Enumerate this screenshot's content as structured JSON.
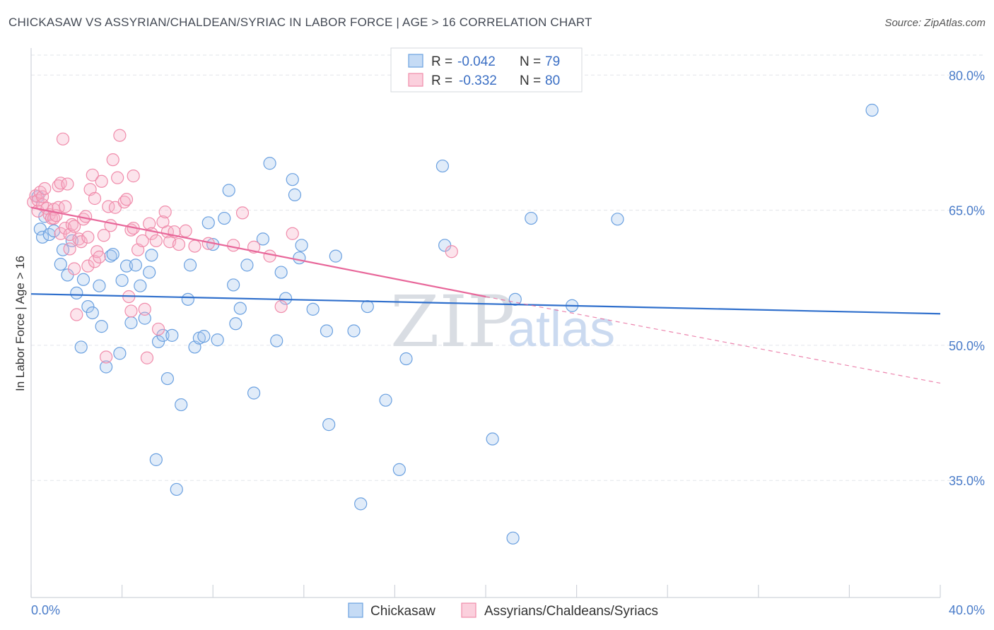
{
  "title": "CHICKASAW VS ASSYRIAN/CHALDEAN/SYRIAC IN LABOR FORCE | AGE > 16 CORRELATION CHART",
  "source": "Source: ZipAtlas.com",
  "watermark": {
    "zip": "ZIP",
    "atlas": "atlas"
  },
  "legend": {
    "rows": [
      {
        "r_label": "R = ",
        "r_value": "-0.042",
        "n_label": "N = ",
        "n_value": "79",
        "color": "#6aa0e0"
      },
      {
        "r_label": "R = ",
        "r_value": "-0.332",
        "n_label": "N = ",
        "n_value": "80",
        "color": "#f08cab"
      }
    ]
  },
  "bottom_legend": [
    "Chickasaw",
    "Assyrians/Chaldeans/Syriacs"
  ],
  "chart_data": {
    "type": "scatter",
    "xlabel": "",
    "ylabel": "In Labor Force | Age > 16",
    "xlim": [
      0,
      40
    ],
    "ylim": [
      22,
      83
    ],
    "x_tick_labels": [
      "0.0%",
      "40.0%"
    ],
    "y_ticks": [
      35,
      50,
      65,
      80
    ],
    "y_tick_labels": [
      "35.0%",
      "50.0%",
      "65.0%",
      "80.0%"
    ],
    "grid": true,
    "legend_position": "top-center",
    "series": [
      {
        "name": "Chickasaw",
        "color": "#6aa0e0",
        "trend": {
          "x": [
            0,
            40
          ],
          "y": [
            55.7,
            53.5
          ],
          "style": "solid"
        },
        "points": [
          [
            0.3,
            66.5
          ],
          [
            0.4,
            62.9
          ],
          [
            0.5,
            62.0
          ],
          [
            0.6,
            64.3
          ],
          [
            0.8,
            62.3
          ],
          [
            1.0,
            62.7
          ],
          [
            1.3,
            59.0
          ],
          [
            1.4,
            60.6
          ],
          [
            1.6,
            57.8
          ],
          [
            1.8,
            61.6
          ],
          [
            2.0,
            55.8
          ],
          [
            2.2,
            49.8
          ],
          [
            2.3,
            57.3
          ],
          [
            2.5,
            54.3
          ],
          [
            2.7,
            53.6
          ],
          [
            3.0,
            56.6
          ],
          [
            3.1,
            52.1
          ],
          [
            3.3,
            47.6
          ],
          [
            3.5,
            59.9
          ],
          [
            3.6,
            60.1
          ],
          [
            3.9,
            49.1
          ],
          [
            4.0,
            57.2
          ],
          [
            4.2,
            58.8
          ],
          [
            4.4,
            52.5
          ],
          [
            4.6,
            58.9
          ],
          [
            4.8,
            56.6
          ],
          [
            5.0,
            53.0
          ],
          [
            5.2,
            58.1
          ],
          [
            5.3,
            60.0
          ],
          [
            5.5,
            37.3
          ],
          [
            5.6,
            50.4
          ],
          [
            5.8,
            51.1
          ],
          [
            6.0,
            46.3
          ],
          [
            6.2,
            51.1
          ],
          [
            6.4,
            34.0
          ],
          [
            6.6,
            43.4
          ],
          [
            6.9,
            55.1
          ],
          [
            7.0,
            58.9
          ],
          [
            7.2,
            49.8
          ],
          [
            7.4,
            50.8
          ],
          [
            7.6,
            51.0
          ],
          [
            7.8,
            63.6
          ],
          [
            8.0,
            61.2
          ],
          [
            8.2,
            50.6
          ],
          [
            8.5,
            64.1
          ],
          [
            8.7,
            67.2
          ],
          [
            8.9,
            56.7
          ],
          [
            9.0,
            52.4
          ],
          [
            9.2,
            54.1
          ],
          [
            9.5,
            58.9
          ],
          [
            9.8,
            44.7
          ],
          [
            10.2,
            61.8
          ],
          [
            10.5,
            70.2
          ],
          [
            10.8,
            50.5
          ],
          [
            11.0,
            58.1
          ],
          [
            11.2,
            55.2
          ],
          [
            11.5,
            68.4
          ],
          [
            11.6,
            66.7
          ],
          [
            11.8,
            59.7
          ],
          [
            11.9,
            61.1
          ],
          [
            12.4,
            54.0
          ],
          [
            13.0,
            51.6
          ],
          [
            13.1,
            41.2
          ],
          [
            13.4,
            59.9
          ],
          [
            14.2,
            51.6
          ],
          [
            14.5,
            32.4
          ],
          [
            14.8,
            54.3
          ],
          [
            15.6,
            43.9
          ],
          [
            16.2,
            36.2
          ],
          [
            16.5,
            48.5
          ],
          [
            18.1,
            69.9
          ],
          [
            18.2,
            61.1
          ],
          [
            20.3,
            39.6
          ],
          [
            21.2,
            28.6
          ],
          [
            21.3,
            55.1
          ],
          [
            22.0,
            64.1
          ],
          [
            23.8,
            54.4
          ],
          [
            25.8,
            64.0
          ],
          [
            37.0,
            76.1
          ]
        ]
      },
      {
        "name": "Assyrians/Chaldeans/Syriacs",
        "color": "#f08cab",
        "trend": {
          "x": [
            0,
            20
          ],
          "y": [
            65.3,
            55.4
          ],
          "style": "solid",
          "extension": {
            "x": [
              20,
              40
            ],
            "y": [
              55.4,
              45.8
            ],
            "style": "dashed"
          }
        },
        "points": [
          [
            0.1,
            65.9
          ],
          [
            0.2,
            66.6
          ],
          [
            0.3,
            64.9
          ],
          [
            0.3,
            66.1
          ],
          [
            0.4,
            67.0
          ],
          [
            0.5,
            65.6
          ],
          [
            0.5,
            66.5
          ],
          [
            0.6,
            67.4
          ],
          [
            0.7,
            65.2
          ],
          [
            0.8,
            64.5
          ],
          [
            0.9,
            64.1
          ],
          [
            1.0,
            65.1
          ],
          [
            1.0,
            64.1
          ],
          [
            1.1,
            64.4
          ],
          [
            1.2,
            65.3
          ],
          [
            1.2,
            67.7
          ],
          [
            1.3,
            62.4
          ],
          [
            1.3,
            68.0
          ],
          [
            1.4,
            72.9
          ],
          [
            1.5,
            65.4
          ],
          [
            1.5,
            63.0
          ],
          [
            1.6,
            67.9
          ],
          [
            1.7,
            62.3
          ],
          [
            1.7,
            60.7
          ],
          [
            1.8,
            63.4
          ],
          [
            1.9,
            63.2
          ],
          [
            1.9,
            58.5
          ],
          [
            2.0,
            53.4
          ],
          [
            2.1,
            61.8
          ],
          [
            2.2,
            61.5
          ],
          [
            2.3,
            64.0
          ],
          [
            2.4,
            64.3
          ],
          [
            2.5,
            62.0
          ],
          [
            2.5,
            58.8
          ],
          [
            2.6,
            67.3
          ],
          [
            2.7,
            68.9
          ],
          [
            2.8,
            66.3
          ],
          [
            2.8,
            59.3
          ],
          [
            2.9,
            60.4
          ],
          [
            3.0,
            59.8
          ],
          [
            3.1,
            68.2
          ],
          [
            3.2,
            62.2
          ],
          [
            3.3,
            48.7
          ],
          [
            3.4,
            65.4
          ],
          [
            3.5,
            63.3
          ],
          [
            3.6,
            70.6
          ],
          [
            3.7,
            65.3
          ],
          [
            3.8,
            68.6
          ],
          [
            3.9,
            73.3
          ],
          [
            4.1,
            65.9
          ],
          [
            4.2,
            66.2
          ],
          [
            4.3,
            55.4
          ],
          [
            4.4,
            53.8
          ],
          [
            4.4,
            62.8
          ],
          [
            4.5,
            63.0
          ],
          [
            4.5,
            68.8
          ],
          [
            4.7,
            60.6
          ],
          [
            4.9,
            61.6
          ],
          [
            5.0,
            54.0
          ],
          [
            5.1,
            48.6
          ],
          [
            5.2,
            63.5
          ],
          [
            5.3,
            62.4
          ],
          [
            5.5,
            61.6
          ],
          [
            5.6,
            51.8
          ],
          [
            5.8,
            63.7
          ],
          [
            5.9,
            64.8
          ],
          [
            6.0,
            62.6
          ],
          [
            6.1,
            61.5
          ],
          [
            6.3,
            62.6
          ],
          [
            6.5,
            61.2
          ],
          [
            6.8,
            62.7
          ],
          [
            7.2,
            61.0
          ],
          [
            7.8,
            61.3
          ],
          [
            8.9,
            61.1
          ],
          [
            9.3,
            64.7
          ],
          [
            9.8,
            60.9
          ],
          [
            10.5,
            59.9
          ],
          [
            11.0,
            54.3
          ],
          [
            11.5,
            62.4
          ],
          [
            18.5,
            60.4
          ]
        ]
      }
    ]
  }
}
